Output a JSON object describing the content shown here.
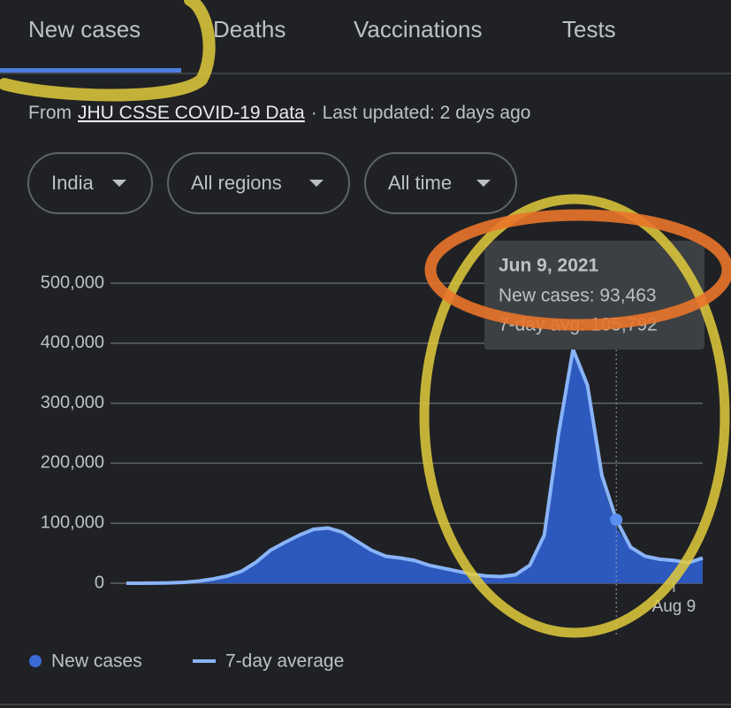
{
  "tabs": [
    "New cases",
    "Deaths",
    "Vaccinations",
    "Tests"
  ],
  "active_tab": 0,
  "source": {
    "prefix": "From",
    "link": "JHU CSSE COVID-19 Data",
    "suffix": "· Last updated: 2 days ago"
  },
  "filters": [
    "India",
    "All regions",
    "All time"
  ],
  "tooltip": {
    "date": "Jun 9, 2021",
    "lines": [
      "New cases: 93,463",
      "7-day avg: 105,792"
    ],
    "index": 34
  },
  "chart_data": {
    "type": "area",
    "categories": [
      null,
      null,
      null,
      null,
      null,
      null,
      null,
      null,
      null,
      null,
      null,
      null,
      null,
      null,
      null,
      null,
      null,
      null,
      null,
      null,
      null,
      null,
      null,
      null,
      null,
      null,
      null,
      null,
      null,
      null,
      null,
      null,
      null,
      null,
      null,
      null,
      null,
      null,
      "Aug 9",
      null,
      null
    ],
    "series": [
      {
        "name": "New cases",
        "color": "#2d58bd",
        "values": [
          0,
          0,
          150,
          600,
          1800,
          3800,
          7500,
          12500,
          21000,
          36000,
          57000,
          66000,
          83000,
          91000,
          95000,
          84000,
          72000,
          53000,
          46000,
          44000,
          36000,
          31000,
          24000,
          19000,
          16000,
          11000,
          12000,
          15000,
          33000,
          85000,
          260000,
          400000,
          320000,
          170000,
          93463,
          58000,
          44000,
          40000,
          37000,
          33000,
          44000
        ]
      },
      {
        "name": "7-day average",
        "color": "#8ab4f8",
        "values": [
          0,
          0,
          100,
          500,
          1500,
          3500,
          7000,
          12000,
          20000,
          35000,
          55000,
          68000,
          80000,
          90000,
          92000,
          85000,
          70000,
          55000,
          45000,
          42000,
          38000,
          30000,
          25000,
          20000,
          15000,
          12000,
          11000,
          14000,
          30000,
          80000,
          250000,
          390000,
          330000,
          180000,
          105792,
          60000,
          45000,
          40000,
          38000,
          34000,
          42000
        ]
      }
    ],
    "ylim": [
      0,
      500000
    ],
    "yticks": [
      0,
      {
        "value": 100000,
        "label": "100,000"
      },
      {
        "value": 200000,
        "label": "200,000"
      },
      {
        "value": 300000,
        "label": "300,000"
      },
      {
        "value": 400000,
        "label": "400,000"
      },
      {
        "value": 500000,
        "label": "500,000"
      }
    ],
    "grid": true
  }
}
